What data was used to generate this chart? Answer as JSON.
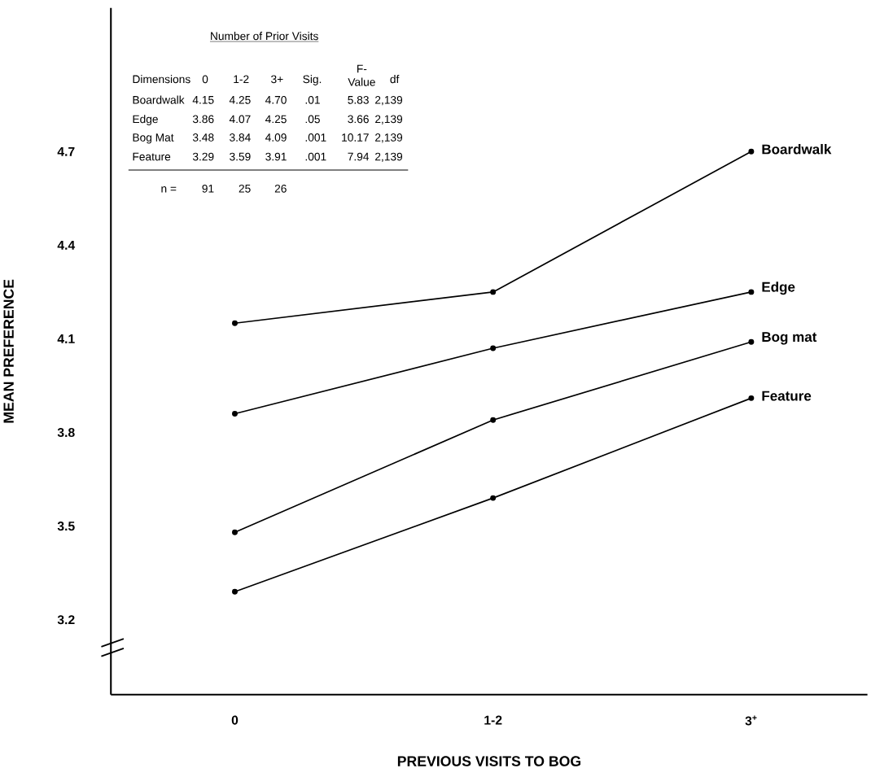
{
  "chart_data": {
    "type": "line",
    "xlabel": "PREVIOUS VISITS TO BOG",
    "ylabel": "MEAN PREFERENCE",
    "categories": [
      "0",
      "1-2",
      "3$^{+}$"
    ],
    "ylim": [
      2.96,
      5.16
    ],
    "yticks": [
      3.2,
      3.5,
      3.8,
      4.1,
      4.4,
      4.7
    ],
    "grid": false,
    "legend": false,
    "marker": "circle",
    "line_style": "solid",
    "series": [
      {
        "name": "Boardwalk",
        "color": "#000000",
        "values": [
          4.15,
          4.25,
          4.7
        ]
      },
      {
        "name": "Edge",
        "color": "#000000",
        "values": [
          3.86,
          4.07,
          4.25
        ]
      },
      {
        "name": "Bog mat",
        "color": "#000000",
        "values": [
          3.48,
          3.84,
          4.09
        ]
      },
      {
        "name": "Feature",
        "color": "#000000",
        "values": [
          3.29,
          3.59,
          3.91
        ]
      }
    ],
    "annotations": [
      "Number of Prior Visits",
      "Dimensions",
      "0",
      "1-2",
      "3+",
      "Sig.",
      "F- Value",
      "df",
      "Boardwalk",
      "Edge",
      "Bog Mat",
      "Feature",
      ".01",
      ".05",
      ".001",
      ".001",
      "5.83",
      "3.66",
      "10.17",
      "7.94",
      "2,139",
      "2,139",
      "2,139",
      "2,139",
      "n =",
      "91",
      "25",
      "26",
      "4.15",
      "4.25",
      "4.70",
      "3.86",
      "4.07",
      "4.25",
      "3.48",
      "3.84",
      "4.09",
      "3.29",
      "3.59",
      "3.91"
    ]
  }
}
